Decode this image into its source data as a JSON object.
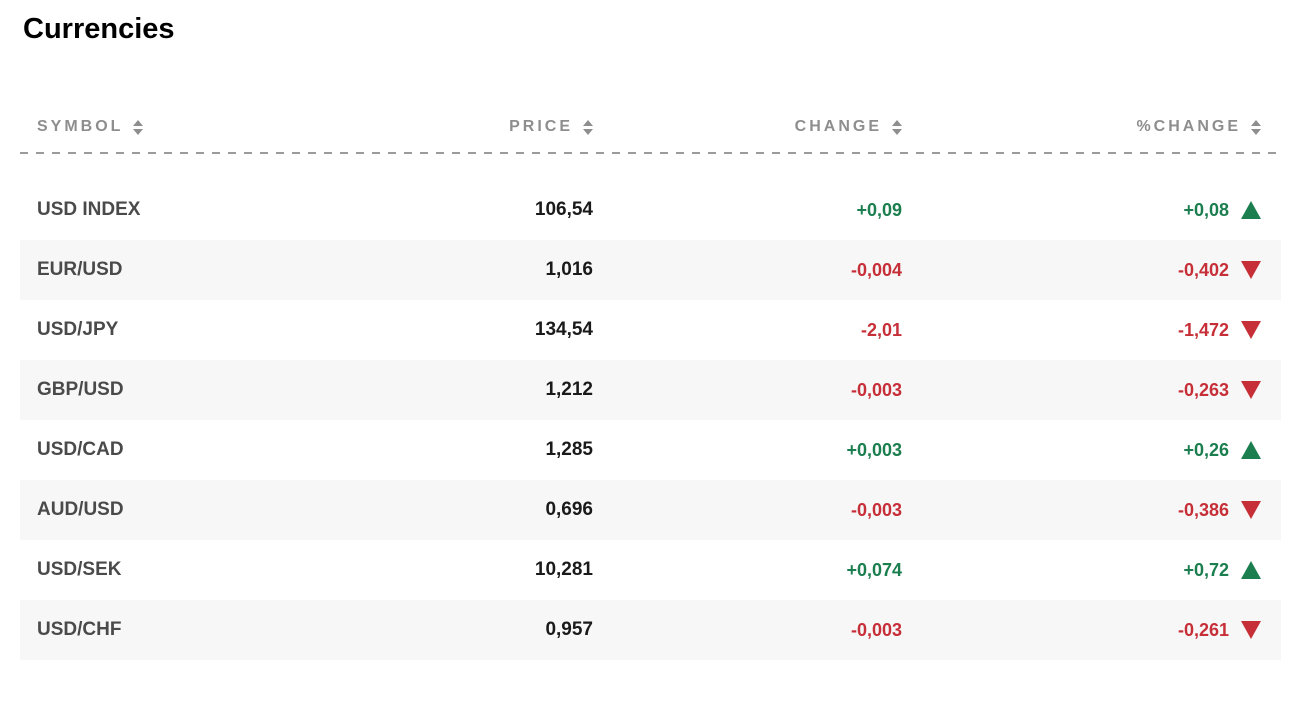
{
  "page": {
    "title": "Currencies"
  },
  "table": {
    "columns": [
      {
        "key": "symbol",
        "label": "SYMBOL"
      },
      {
        "key": "price",
        "label": "PRICE"
      },
      {
        "key": "change",
        "label": "CHANGE"
      },
      {
        "key": "pct_change",
        "label": "%CHANGE"
      }
    ],
    "rows": [
      {
        "symbol": "USD INDEX",
        "price": "106,54",
        "change": "+0,09",
        "pct_change": "+0,08",
        "trend": "up"
      },
      {
        "symbol": "EUR/USD",
        "price": "1,016",
        "change": "-0,004",
        "pct_change": "-0,402",
        "trend": "down"
      },
      {
        "symbol": "USD/JPY",
        "price": "134,54",
        "change": "-2,01",
        "pct_change": "-1,472",
        "trend": "down"
      },
      {
        "symbol": "GBP/USD",
        "price": "1,212",
        "change": "-0,003",
        "pct_change": "-0,263",
        "trend": "down"
      },
      {
        "symbol": "USD/CAD",
        "price": "1,285",
        "change": "+0,003",
        "pct_change": "+0,26",
        "trend": "up"
      },
      {
        "symbol": "AUD/USD",
        "price": "0,696",
        "change": "-0,003",
        "pct_change": "-0,386",
        "trend": "down"
      },
      {
        "symbol": "USD/SEK",
        "price": "10,281",
        "change": "+0,074",
        "pct_change": "+0,72",
        "trend": "up"
      },
      {
        "symbol": "USD/CHF",
        "price": "0,957",
        "change": "-0,003",
        "pct_change": "-0,261",
        "trend": "down"
      }
    ]
  },
  "icons": {
    "sort": "up-down-triangles",
    "trend_up": "▲",
    "trend_down": "▼"
  },
  "colors": {
    "positive": "#1b7e4f",
    "negative": "#c62f38",
    "header_text": "#8e8e8e",
    "row_alt_bg": "#f7f7f7"
  }
}
